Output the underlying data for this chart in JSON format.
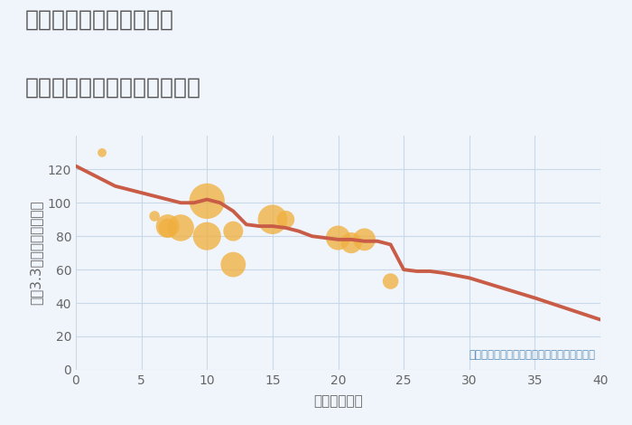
{
  "title_line1": "兵庫県姫路市南新在家の",
  "title_line2": "築年数別中古マンション価格",
  "xlabel": "築年数（年）",
  "ylabel": "坪（3.3㎡）単価（万円）",
  "note": "円の大きさは、取引のあった物件面積を示す",
  "xlim": [
    0,
    40
  ],
  "ylim": [
    0,
    140
  ],
  "xticks": [
    0,
    5,
    10,
    15,
    20,
    25,
    30,
    35,
    40
  ],
  "yticks": [
    0,
    20,
    40,
    60,
    80,
    100,
    120
  ],
  "line_x": [
    0,
    1,
    2,
    3,
    4,
    5,
    6,
    7,
    8,
    9,
    10,
    11,
    12,
    13,
    14,
    15,
    16,
    17,
    18,
    19,
    20,
    21,
    22,
    23,
    24,
    25,
    26,
    27,
    28,
    30,
    35,
    40
  ],
  "line_y": [
    122,
    118,
    114,
    110,
    108,
    106,
    104,
    102,
    100,
    100,
    102,
    100,
    95,
    87,
    86,
    86,
    85,
    83,
    80,
    79,
    78,
    78,
    77,
    77,
    75,
    60,
    59,
    59,
    58,
    55,
    43,
    30
  ],
  "scatter_x": [
    2,
    6,
    7,
    7,
    8,
    10,
    10,
    12,
    12,
    15,
    16,
    20,
    21,
    22,
    24
  ],
  "scatter_y": [
    130,
    92,
    86,
    85,
    85,
    101,
    80,
    83,
    63,
    90,
    90,
    79,
    76,
    78,
    53
  ],
  "scatter_size": [
    50,
    70,
    350,
    220,
    450,
    800,
    500,
    250,
    400,
    550,
    200,
    380,
    280,
    320,
    160
  ],
  "scatter_color": "#f0b040",
  "scatter_alpha": 0.78,
  "line_color": "#c95c46",
  "line_width": 2.8,
  "bg_color": "#f0f5fb",
  "grid_color": "#c8d8e8",
  "title_color": "#555555",
  "axis_label_color": "#666666",
  "note_color": "#5b8db8",
  "title_fontsize": 18,
  "axis_label_fontsize": 11,
  "tick_fontsize": 10,
  "note_fontsize": 8.5
}
